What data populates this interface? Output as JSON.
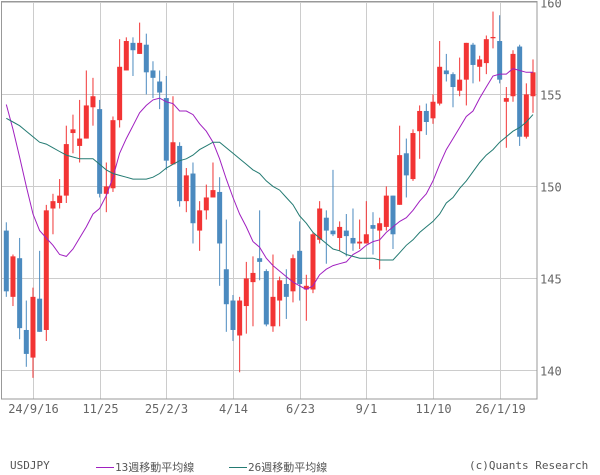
{
  "chart_data": {
    "type": "candlestick",
    "symbol": "USDJPY",
    "ylim": [
      138.45,
      160.02
    ],
    "y_ticks": [
      140,
      145,
      150,
      155,
      160
    ],
    "grid": true,
    "x_ticks": [
      {
        "index": 4,
        "label": "24/9/16"
      },
      {
        "index": 14,
        "label": "11/25"
      },
      {
        "index": 24,
        "label": "25/2/3"
      },
      {
        "index": 34,
        "label": "4/14"
      },
      {
        "index": 44,
        "label": "6/23"
      },
      {
        "index": 54,
        "label": "9/1"
      },
      {
        "index": 64,
        "label": "11/10"
      },
      {
        "index": 74,
        "label": "26/1/19"
      }
    ],
    "colors": {
      "up": "#f23434",
      "down": "#4b8abf",
      "ma13": "#a020c0",
      "ma26": "#237a72"
    },
    "ohlc": [
      [
        147.6,
        148.05,
        144.0,
        144.3
      ],
      [
        144.0,
        146.3,
        143.5,
        146.2
      ],
      [
        146.1,
        147.2,
        141.7,
        142.3
      ],
      [
        142.2,
        143.8,
        140.2,
        140.9
      ],
      [
        140.7,
        144.5,
        139.6,
        144.0
      ],
      [
        143.9,
        146.5,
        142.1,
        142.1
      ],
      [
        142.2,
        149.0,
        141.6,
        148.7
      ],
      [
        148.8,
        149.6,
        147.4,
        149.2
      ],
      [
        149.1,
        150.4,
        148.8,
        149.5
      ],
      [
        149.5,
        153.3,
        149.1,
        152.3
      ],
      [
        152.9,
        153.9,
        151.8,
        153.1
      ],
      [
        152.2,
        154.7,
        151.3,
        152.6
      ],
      [
        152.6,
        156.3,
        152.6,
        154.4
      ],
      [
        154.3,
        155.9,
        153.3,
        154.9
      ],
      [
        154.2,
        154.7,
        149.4,
        149.6
      ],
      [
        149.6,
        151.3,
        148.6,
        150.0
      ],
      [
        149.9,
        153.8,
        149.7,
        153.6
      ],
      [
        153.6,
        158.0,
        153.2,
        156.5
      ],
      [
        156.3,
        158.1,
        156.3,
        157.9
      ],
      [
        157.8,
        158.1,
        156.0,
        157.4
      ],
      [
        157.2,
        158.9,
        157.2,
        157.8
      ],
      [
        157.7,
        158.3,
        155.0,
        156.2
      ],
      [
        156.3,
        156.8,
        154.8,
        155.9
      ],
      [
        155.7,
        156.3,
        154.2,
        155.1
      ],
      [
        154.8,
        156.0,
        150.9,
        151.4
      ],
      [
        151.2,
        154.9,
        151.2,
        152.4
      ],
      [
        152.2,
        152.4,
        148.9,
        149.2
      ],
      [
        149.2,
        151.0,
        148.6,
        150.6
      ],
      [
        150.7,
        151.3,
        146.9,
        148.0
      ],
      [
        147.6,
        149.2,
        146.5,
        148.7
      ],
      [
        148.7,
        150.1,
        148.2,
        149.4
      ],
      [
        149.4,
        151.3,
        149.4,
        149.8
      ],
      [
        149.7,
        150.5,
        144.6,
        146.9
      ],
      [
        145.5,
        148.2,
        142.1,
        143.6
      ],
      [
        143.8,
        144.1,
        141.6,
        142.2
      ],
      [
        141.9,
        144.0,
        139.9,
        143.8
      ],
      [
        143.5,
        145.9,
        142.0,
        145.0
      ],
      [
        144.8,
        146.2,
        142.4,
        145.3
      ],
      [
        146.1,
        148.7,
        144.9,
        145.9
      ],
      [
        145.4,
        145.5,
        142.4,
        142.5
      ],
      [
        142.4,
        146.3,
        142.1,
        144.0
      ],
      [
        143.8,
        145.1,
        142.4,
        144.9
      ],
      [
        144.7,
        145.5,
        142.8,
        144.0
      ],
      [
        144.3,
        146.3,
        143.7,
        146.1
      ],
      [
        146.5,
        148.1,
        143.8,
        144.7
      ],
      [
        144.4,
        145.2,
        142.7,
        144.6
      ],
      [
        144.4,
        147.5,
        144.2,
        147.4
      ],
      [
        147.1,
        149.2,
        146.9,
        148.8
      ],
      [
        148.3,
        148.7,
        145.8,
        147.6
      ],
      [
        147.6,
        150.9,
        147.3,
        147.4
      ],
      [
        147.2,
        148.1,
        146.5,
        147.8
      ],
      [
        147.6,
        148.5,
        146.2,
        147.3
      ],
      [
        147.2,
        148.8,
        146.5,
        146.9
      ],
      [
        146.9,
        148.2,
        146.6,
        147.0
      ],
      [
        146.9,
        149.2,
        146.9,
        147.4
      ],
      [
        147.9,
        148.6,
        146.3,
        147.7
      ],
      [
        147.6,
        148.3,
        145.5,
        148.0
      ],
      [
        147.8,
        150.0,
        147.6,
        149.5
      ],
      [
        149.5,
        149.5,
        146.6,
        147.4
      ],
      [
        149.0,
        153.3,
        149.0,
        151.7
      ],
      [
        151.8,
        152.6,
        149.4,
        150.6
      ],
      [
        150.4,
        153.1,
        150.3,
        152.9
      ],
      [
        153.0,
        154.4,
        151.5,
        154.1
      ],
      [
        154.1,
        154.5,
        152.8,
        153.5
      ],
      [
        153.7,
        155.0,
        153.4,
        154.6
      ],
      [
        154.5,
        157.9,
        154.4,
        156.5
      ],
      [
        156.3,
        157.2,
        155.7,
        156.1
      ],
      [
        156.1,
        156.2,
        154.3,
        155.4
      ],
      [
        155.2,
        157.0,
        154.9,
        155.8
      ],
      [
        155.8,
        157.8,
        154.4,
        157.8
      ],
      [
        157.7,
        157.8,
        155.6,
        156.6
      ],
      [
        156.5,
        157.1,
        155.7,
        156.9
      ],
      [
        156.7,
        158.2,
        156.1,
        158.0
      ],
      [
        158.05,
        159.5,
        157.5,
        158.12
      ],
      [
        157.9,
        159.3,
        155.6,
        155.8
      ],
      [
        154.6,
        155.4,
        152.1,
        154.8
      ],
      [
        154.9,
        157.4,
        154.6,
        157.2
      ],
      [
        157.6,
        157.7,
        152.2,
        152.7
      ],
      [
        152.7,
        155.6,
        152.6,
        155.0
      ],
      [
        154.9,
        156.9,
        154.0,
        156.2
      ]
    ],
    "series": [
      {
        "name": "13週移動平均線",
        "values": [
          154.45,
          153.1,
          151.6,
          150.0,
          148.5,
          147.6,
          147.2,
          146.8,
          146.3,
          146.2,
          146.6,
          147.2,
          147.8,
          148.5,
          148.8,
          149.5,
          150.5,
          151.8,
          152.6,
          153.3,
          154.0,
          154.4,
          154.7,
          154.8,
          154.6,
          154.5,
          154.1,
          154.1,
          153.9,
          153.4,
          153.0,
          152.4,
          151.5,
          150.4,
          149.4,
          148.5,
          147.8,
          147.0,
          146.7,
          146.1,
          145.7,
          145.4,
          145.1,
          144.8,
          144.6,
          144.4,
          144.6,
          145.2,
          145.5,
          145.7,
          145.8,
          145.9,
          146.3,
          146.5,
          146.8,
          147.0,
          147.1,
          147.5,
          147.8,
          148.1,
          148.3,
          148.7,
          149.2,
          149.6,
          150.3,
          151.2,
          152.0,
          152.6,
          153.2,
          153.8,
          154.1,
          154.8,
          155.4,
          156.0,
          156.1,
          156.1,
          156.4,
          156.3,
          156.2,
          156.2
        ]
      },
      {
        "name": "26週移動平均線",
        "values": [
          153.7,
          153.5,
          153.3,
          153.0,
          152.7,
          152.4,
          152.3,
          152.1,
          151.9,
          151.7,
          151.6,
          151.5,
          151.5,
          151.5,
          151.2,
          150.9,
          150.7,
          150.6,
          150.5,
          150.4,
          150.4,
          150.4,
          150.5,
          150.7,
          151.0,
          151.2,
          151.4,
          151.5,
          151.7,
          152.0,
          152.2,
          152.4,
          152.4,
          152.1,
          151.8,
          151.5,
          151.2,
          150.9,
          150.7,
          150.3,
          150.0,
          149.8,
          149.4,
          149.0,
          148.4,
          148.0,
          147.5,
          147.2,
          146.9,
          146.6,
          146.5,
          146.3,
          146.2,
          146.1,
          146.1,
          146.1,
          146.0,
          146.0,
          146.0,
          146.4,
          146.8,
          147.1,
          147.5,
          147.8,
          148.1,
          148.5,
          149.1,
          149.4,
          149.9,
          150.3,
          150.8,
          151.3,
          151.7,
          152.0,
          152.4,
          152.7,
          153.0,
          153.2,
          153.5,
          153.9
        ]
      }
    ]
  },
  "footer": {
    "symbol": "USDJPY",
    "legend_ma13": "13週移動平均線",
    "legend_ma26": "26週移動平均線",
    "credit": "(c)Quants Research"
  }
}
